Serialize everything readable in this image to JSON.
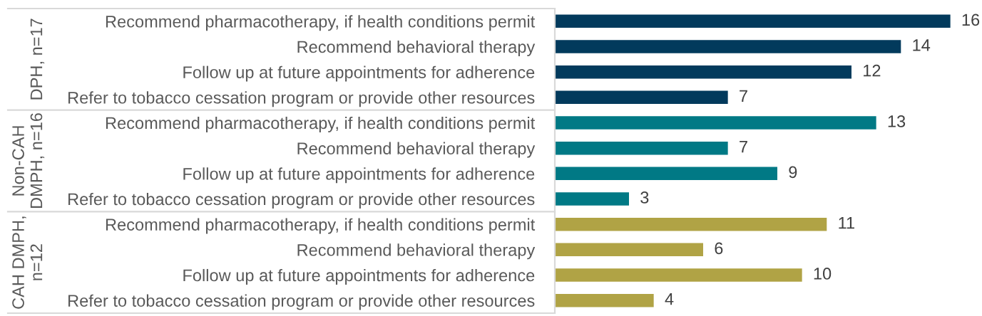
{
  "chart_data": {
    "type": "bar",
    "orientation": "horizontal",
    "categories": [
      "Recommend pharmacotherapy, if health conditions permit",
      "Recommend behavioral therapy",
      "Follow up at future appointments for adherence",
      "Refer to tobacco cessation program or provide other resources",
      "Recommend pharmacotherapy, if health conditions permit",
      "Recommend behavioral therapy",
      "Follow up at future appointments for adherence",
      "Refer to tobacco cessation program or provide other resources",
      "Recommend pharmacotherapy, if health conditions permit",
      "Recommend behavioral therapy",
      "Follow up at future appointments for adherence",
      "Refer to tobacco cessation program or provide other resources"
    ],
    "series": [
      {
        "color": "#023a5c",
        "values": [
          16,
          14,
          12,
          7,
          null,
          null,
          null,
          null,
          null,
          null,
          null,
          null
        ]
      },
      {
        "color": "#017985",
        "values": [
          null,
          null,
          null,
          null,
          13,
          7,
          9,
          3,
          null,
          null,
          null,
          null
        ]
      },
      {
        "color": "#b0a345",
        "values": [
          null,
          null,
          null,
          null,
          null,
          null,
          null,
          null,
          11,
          6,
          10,
          4
        ]
      }
    ],
    "annotations": [
      "DPH, n=17",
      "Non-CAH\nDMPH, n=16",
      "CAH DMPH,\nn=12"
    ],
    "data_labels": true,
    "tick_labels": "y"
  }
}
